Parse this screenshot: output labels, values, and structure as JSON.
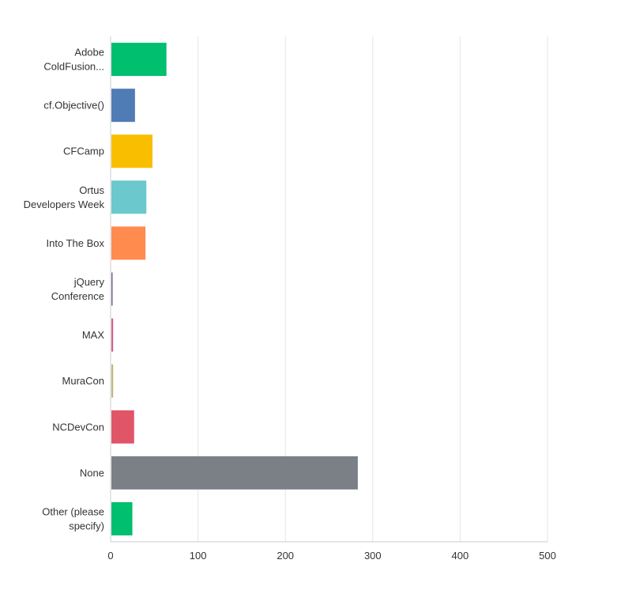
{
  "chart_data": {
    "type": "bar",
    "orientation": "horizontal",
    "title": "",
    "xlabel": "",
    "ylabel": "",
    "xlim": [
      0,
      500
    ],
    "x_ticks": [
      0,
      100,
      200,
      300,
      400,
      500
    ],
    "grid": true,
    "categories": [
      [
        "Adobe",
        "ColdFusion..."
      ],
      [
        "cf.Objective()"
      ],
      [
        "CFCamp"
      ],
      [
        "Ortus",
        "Developers Week"
      ],
      [
        "Into The Box"
      ],
      [
        "jQuery",
        "Conference"
      ],
      [
        "MAX"
      ],
      [
        "MuraCon"
      ],
      [
        "NCDevCon"
      ],
      [
        "None"
      ],
      [
        "Other (please",
        "specify)"
      ]
    ],
    "values": [
      63,
      27,
      47,
      40,
      39,
      1,
      2,
      2,
      26,
      282,
      24
    ],
    "colors": [
      "#00bf6f",
      "#507cb6",
      "#f9be00",
      "#6bc8cd",
      "#ff8b4f",
      "#7d5e90",
      "#d25f90",
      "#c4b57b",
      "#e05567",
      "#7b8087",
      "#00bf6f"
    ]
  }
}
